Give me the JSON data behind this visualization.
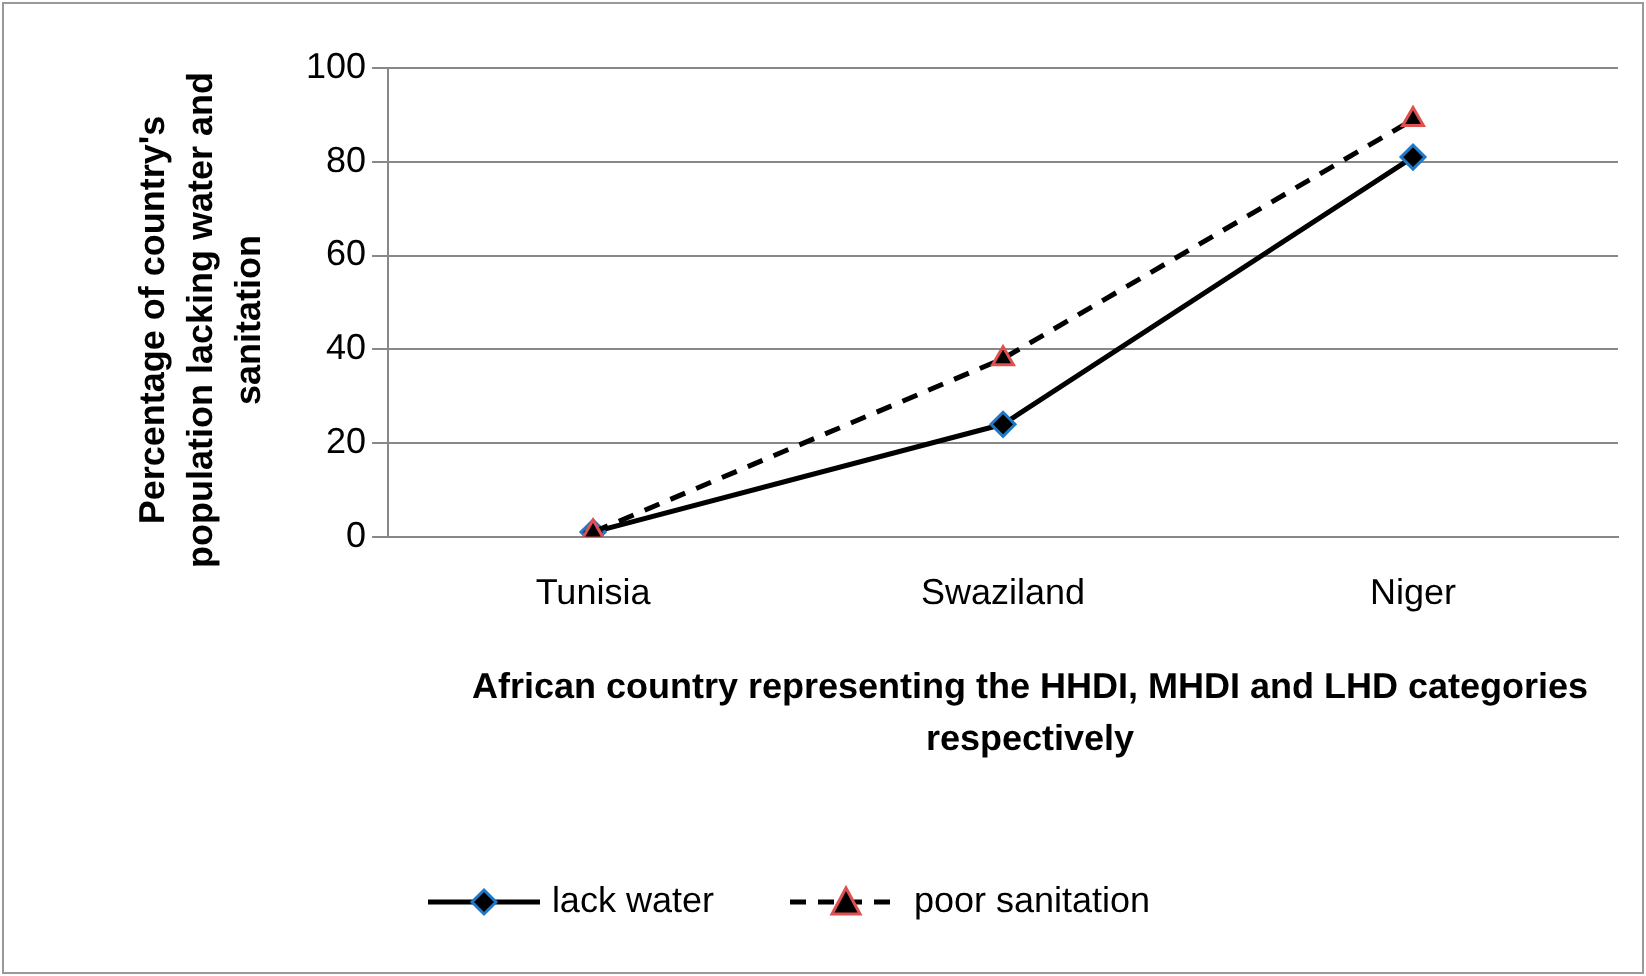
{
  "chart_data": {
    "type": "line",
    "xlabel": "African country representing the HHDI, MHDI and LHD categories respectively",
    "ylabel": "Percentage of country's population lacking water and sanitation",
    "categories": [
      "Tunisia",
      "Swaziland",
      "Niger"
    ],
    "series": [
      {
        "name": "lack water",
        "color": "#000000",
        "values": [
          1,
          24,
          81
        ],
        "marker": "diamond",
        "line_style": "solid"
      },
      {
        "name": "poor sanitation",
        "color": "#000000",
        "values": [
          1,
          38,
          89
        ],
        "marker": "triangle",
        "line_style": "dashed"
      }
    ],
    "ylim": [
      0,
      100
    ],
    "yticks": [
      0,
      20,
      40,
      60,
      80,
      100
    ],
    "grid": "y",
    "legend": "bottom"
  }
}
